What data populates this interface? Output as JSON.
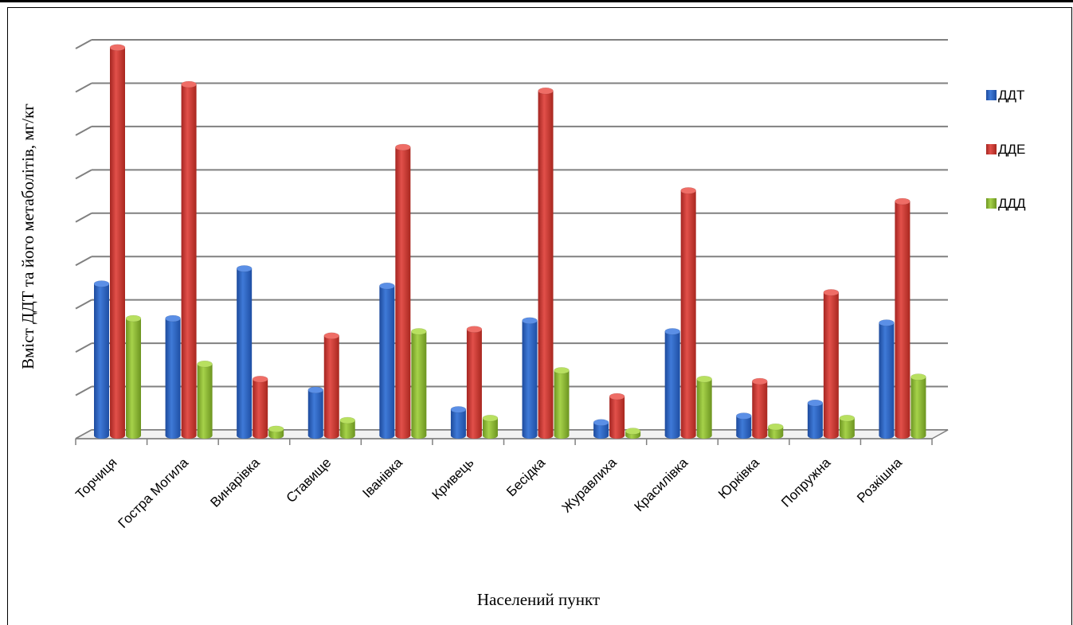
{
  "chart_data": {
    "type": "bar",
    "title": "",
    "xlabel": "Населений пункт",
    "ylabel": "Вміст ДДТ та його метаболітів, мг/кг",
    "categories": [
      "Торчиця",
      "Гостра Могила",
      "Винарівка",
      "Ставище",
      "Іванівка",
      "Кривець",
      "Бесідка",
      "Журавлиха",
      "Красилівка",
      "Юрківка",
      "Попружна",
      "Розкішна"
    ],
    "series": [
      {
        "name": "ДДТ",
        "color": "#2f66c4",
        "values": [
          3.5,
          2.7,
          3.85,
          1.05,
          3.45,
          0.6,
          2.65,
          0.3,
          2.4,
          0.45,
          0.75,
          2.6
        ]
      },
      {
        "name": "ДДЕ",
        "color": "#d23a36",
        "values": [
          8.95,
          8.1,
          1.3,
          2.3,
          6.65,
          2.45,
          7.95,
          0.9,
          5.65,
          1.25,
          3.3,
          5.4
        ]
      },
      {
        "name": "ДДД",
        "color": "#8ab833",
        "values": [
          2.7,
          1.65,
          0.15,
          0.35,
          2.4,
          0.4,
          1.5,
          0.1,
          1.3,
          0.2,
          0.4,
          1.35
        ]
      }
    ],
    "ylim": [
      0,
      9
    ],
    "grid": true,
    "legend": "right"
  }
}
